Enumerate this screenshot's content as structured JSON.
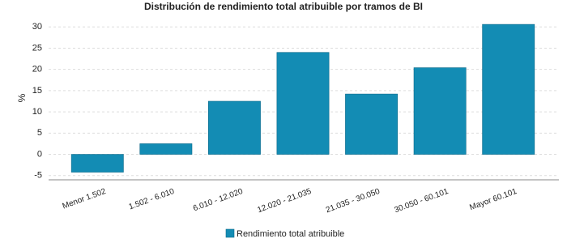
{
  "chart_data": {
    "type": "bar",
    "title": "Distribución de rendimiento total atribuible por tramos de BI",
    "y_label": "%",
    "categories": [
      "Menor 1.502",
      "1.502 - 6.010",
      "6.010 - 12.020",
      "12.020 - 21.035",
      "21.035 - 30.050",
      "30.050 - 60.101",
      "Mayor 60.101"
    ],
    "series": [
      {
        "name": "Rendimiento total atribuible",
        "color": "#138cb4",
        "values": [
          -4.2,
          2.5,
          12.5,
          24.0,
          14.2,
          20.4,
          30.6
        ]
      }
    ],
    "ylim": [
      -6,
      31
    ],
    "yticks": [
      -5,
      0,
      5,
      10,
      15,
      20,
      25,
      30
    ],
    "grid": true
  }
}
